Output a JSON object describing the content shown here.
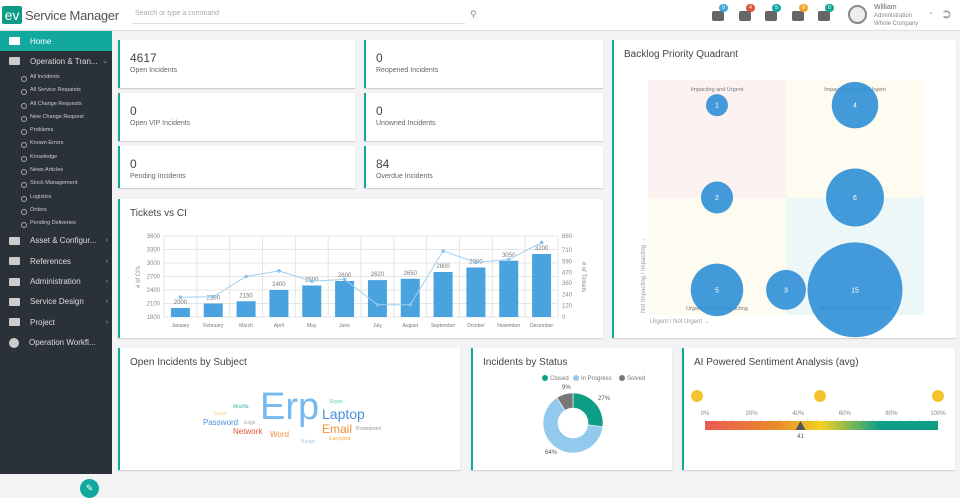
{
  "header": {
    "logo": "ev",
    "brand": "Service Manager",
    "search_placeholder": "Search or type a command",
    "icons": [
      {
        "name": "alert",
        "count": "0",
        "color": "#3ea8db"
      },
      {
        "name": "bell",
        "count": "4",
        "color": "#e0533d"
      },
      {
        "name": "list",
        "count": "5",
        "color": "#13a89e"
      },
      {
        "name": "users",
        "count": "6",
        "color": "#f0a52a"
      },
      {
        "name": "chat",
        "count": "0",
        "color": "#13a89e"
      }
    ],
    "user": {
      "name": "William",
      "role": "Administration",
      "company": "Whole Company"
    }
  },
  "sidebar": {
    "items": [
      {
        "label": "Home",
        "active": true
      },
      {
        "label": "Operation & Tran...",
        "expanded": true
      }
    ],
    "subitems": [
      "All Incidents",
      "All Service Requests",
      "All Change Requests",
      "New Change Request",
      "Problems",
      "Known Errors",
      "Knowledge",
      "News Articles",
      "Stock Management",
      "Logistics",
      "Orders",
      "Pending Deliveries"
    ],
    "more": [
      "Asset & Configur...",
      "References",
      "Administration",
      "Service Design",
      "Project",
      "Operation Workfl..."
    ]
  },
  "kpis": [
    {
      "value": "4617",
      "label": "Open Incidents"
    },
    {
      "value": "0",
      "label": "Reopened Incidents"
    },
    {
      "value": "0",
      "label": "Open VIP Incidents"
    },
    {
      "value": "0",
      "label": "Unowned Incidents"
    },
    {
      "value": "0",
      "label": "Pending Incidents"
    },
    {
      "value": "84",
      "label": "Overdue Incidents"
    }
  ],
  "chart_data": [
    {
      "type": "bar",
      "title": "Tickets vs CI",
      "categories": [
        "January",
        "February",
        "March",
        "April",
        "May",
        "June",
        "July",
        "August",
        "September",
        "October",
        "November",
        "December"
      ],
      "series": [
        {
          "name": "# of CI's",
          "type": "bar",
          "values": [
            2000,
            2100,
            2150,
            2400,
            2500,
            2600,
            2620,
            2650,
            2800,
            2900,
            3050,
            3200
          ]
        },
        {
          "name": "# of Tickets",
          "type": "line",
          "values": [
            210,
            215,
            430,
            490,
            380,
            400,
            130,
            130,
            700,
            580,
            610,
            790
          ]
        }
      ],
      "ylabel": "# of CI's",
      "y2label": "# of Tickets",
      "ylim": [
        1800,
        3600
      ],
      "yticks": [
        1800,
        2100,
        2400,
        2700,
        3000,
        3300,
        3600
      ],
      "y2lim": [
        0,
        860
      ],
      "y2ticks": [
        0,
        120,
        240,
        360,
        470,
        590,
        710,
        860
      ],
      "grid": true,
      "color": "#4aa3df"
    },
    {
      "type": "scatter",
      "title": "Backlog Priority Quadrant",
      "xlabel": "Urgent / Not Urgent →",
      "ylabel": "Not Impacting / Impacting →",
      "quadrants": [
        "Impacting and Urgent",
        "Impacting and not Urgent",
        "Urgent and not Impacting",
        "Not Impacting and not Urgent"
      ],
      "points": [
        {
          "x": 1,
          "y": 3,
          "value": 1
        },
        {
          "x": 1,
          "y": 2,
          "value": 2
        },
        {
          "x": 1,
          "y": 1,
          "value": 5
        },
        {
          "x": 2,
          "y": 1,
          "value": 3
        },
        {
          "x": 3,
          "y": 3,
          "value": 4
        },
        {
          "x": 3,
          "y": 2,
          "value": 6
        },
        {
          "x": 3,
          "y": 1,
          "value": 15
        }
      ]
    },
    {
      "type": "pie",
      "title": "Incidents by Status",
      "labels": [
        "Closed",
        "In Progress",
        "Solved"
      ],
      "values": [
        27,
        64,
        9
      ],
      "colors": [
        "#0e9e86",
        "#93c9ec",
        "#777777"
      ],
      "legend": "top"
    }
  ],
  "wordcloud": {
    "title": "Open Incidents by Subject",
    "words": [
      {
        "t": "Erp",
        "c": "#74b9f0",
        "s": 38
      },
      {
        "t": "Laptop",
        "c": "#4a8fdc",
        "s": 14
      },
      {
        "t": "Email",
        "c": "#f0923a",
        "s": 12
      },
      {
        "t": "Password",
        "c": "#4a8fdc",
        "s": 8
      },
      {
        "t": "Network",
        "c": "#e0533d",
        "s": 8
      },
      {
        "t": "Word",
        "c": "#f0923a",
        "s": 8
      },
      {
        "t": "Mozilla",
        "c": "#3fb3a8",
        "s": 5
      },
      {
        "t": "Excel",
        "c": "#f5d27a",
        "s": 5
      },
      {
        "t": "Edge",
        "c": "#aaaaaa",
        "s": 5
      },
      {
        "t": "Skype",
        "c": "#5ed0c0",
        "s": 5
      },
      {
        "t": "Powerpoint",
        "c": "#999999",
        "s": 5
      },
      {
        "t": "Easyvista",
        "c": "#f5b040",
        "s": 5
      },
      {
        "t": "Badge",
        "c": "#a8cff0",
        "s": 5
      }
    ]
  },
  "sentiment": {
    "title": "AI Powered Sentiment Analysis (avg)",
    "ticks": [
      "0%",
      "20%",
      "40%",
      "60%",
      "80%",
      "100%"
    ],
    "value": 41,
    "value_label": "41"
  }
}
